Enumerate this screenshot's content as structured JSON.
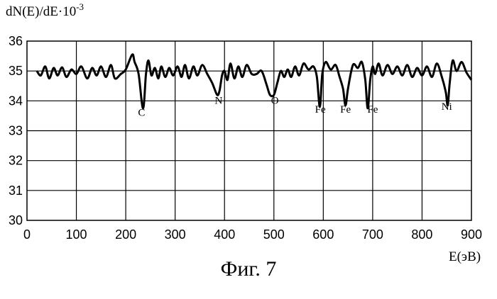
{
  "chart_data": {
    "type": "line",
    "title": "",
    "ylabel": "dN(E)/dE·10",
    "ylabel_sup": "-3",
    "xlabel": "E(эВ)",
    "xlim": [
      0,
      900
    ],
    "ylim": [
      30,
      36
    ],
    "xticks": [
      0,
      100,
      200,
      300,
      400,
      500,
      600,
      700,
      800,
      900
    ],
    "yticks": [
      30,
      31,
      32,
      33,
      34,
      35,
      36
    ],
    "grid": true,
    "series": [
      {
        "x": [
          20,
          28,
          37,
          45,
          54,
          62,
          71,
          80,
          90,
          100,
          110,
          122,
          132,
          141,
          150,
          160,
          170,
          178,
          190,
          200,
          213,
          218,
          226,
          235,
          241,
          246,
          252,
          259,
          266,
          272,
          280,
          288,
          296,
          305,
          313,
          320,
          328,
          337,
          345,
          355,
          365,
          375,
          385,
          390,
          395,
          400,
          406,
          412,
          420,
          428,
          436,
          445,
          455,
          465,
          475,
          485,
          492,
          500,
          507,
          514,
          521,
          528,
          535,
          543,
          551,
          560,
          570,
          580,
          587,
          593,
          598,
          605,
          615,
          625,
          633,
          640,
          645,
          650,
          660,
          670,
          678,
          685,
          690,
          695,
          700,
          705,
          712,
          720,
          730,
          740,
          750,
          760,
          770,
          780,
          790,
          800,
          810,
          820,
          830,
          840,
          848,
          852,
          856,
          862,
          870,
          880,
          890,
          900
        ],
        "y": [
          35.0,
          34.85,
          35.15,
          34.75,
          35.1,
          34.85,
          35.12,
          34.8,
          35.05,
          34.9,
          35.15,
          34.75,
          35.1,
          34.85,
          35.15,
          34.8,
          35.2,
          34.75,
          34.9,
          35.05,
          35.55,
          35.3,
          34.9,
          33.75,
          34.9,
          35.35,
          34.85,
          35.1,
          34.75,
          35.15,
          34.8,
          35.1,
          34.85,
          35.15,
          34.8,
          35.2,
          34.75,
          35.15,
          34.85,
          35.2,
          34.9,
          34.6,
          34.2,
          34.35,
          34.85,
          35.0,
          34.7,
          35.25,
          34.75,
          35.15,
          34.8,
          35.2,
          34.9,
          34.9,
          35.0,
          34.55,
          34.2,
          34.2,
          34.6,
          35.0,
          34.8,
          35.05,
          34.8,
          35.15,
          34.85,
          35.25,
          35.05,
          35.15,
          34.8,
          33.8,
          34.9,
          35.3,
          35.05,
          35.2,
          34.8,
          34.4,
          33.85,
          34.4,
          35.2,
          35.1,
          35.3,
          34.7,
          33.75,
          34.7,
          35.15,
          34.9,
          35.25,
          34.85,
          35.2,
          34.9,
          35.15,
          34.85,
          35.2,
          34.8,
          35.1,
          34.85,
          35.15,
          34.8,
          35.25,
          34.8,
          34.3,
          33.85,
          34.6,
          35.35,
          35.0,
          35.3,
          34.95,
          34.7
        ]
      }
    ],
    "annotations": [
      {
        "text": "C",
        "x": 232,
        "y": 33.5
      },
      {
        "text": "N",
        "x": 388,
        "y": 33.9
      },
      {
        "text": "O",
        "x": 502,
        "y": 33.9
      },
      {
        "text": "Fe",
        "x": 594,
        "y": 33.6
      },
      {
        "text": "Fe",
        "x": 645,
        "y": 33.6
      },
      {
        "text": "Fe",
        "x": 700,
        "y": 33.6
      },
      {
        "text": "Ni",
        "x": 850,
        "y": 33.7
      }
    ]
  },
  "caption": "Фиг. 7"
}
